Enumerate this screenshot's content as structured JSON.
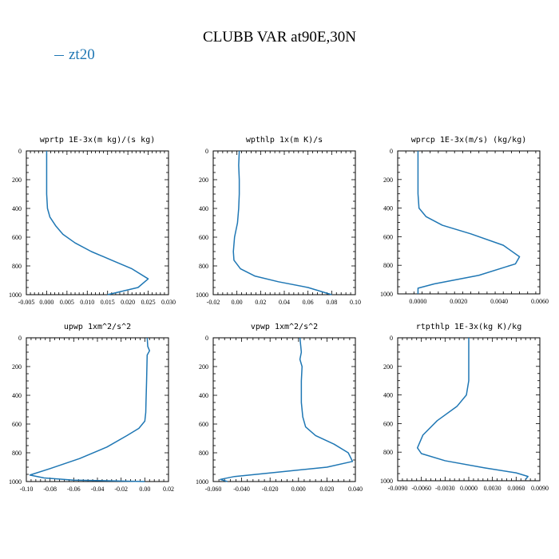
{
  "figure": {
    "title": "CLUBB VAR at90E,30N",
    "legend": [
      {
        "label": "zt20",
        "color": "#1f77b4"
      }
    ]
  },
  "chart_data": [
    {
      "type": "line",
      "title": "wprtp  1E-3x(m kg)/(s kg)",
      "xlim": [
        -0.005,
        0.03
      ],
      "xticks": [
        "-0.005",
        "0.000",
        "0.005",
        "0.010",
        "0.015",
        "0.020",
        "0.025",
        "0.030"
      ],
      "ylim": [
        1000,
        0
      ],
      "yticks": [
        "0",
        "200",
        "400",
        "600",
        "800",
        "1000"
      ],
      "series": [
        {
          "color": "#1f77b4",
          "x": [
            0.0,
            0.0,
            0.0,
            0.0,
            0.0002,
            0.0008,
            0.0022,
            0.004,
            0.007,
            0.011,
            0.016,
            0.021,
            0.025,
            0.0225,
            0.015
          ],
          "y": [
            0,
            100,
            200,
            300,
            400,
            460,
            520,
            580,
            640,
            700,
            760,
            820,
            890,
            950,
            1000
          ]
        }
      ]
    },
    {
      "type": "line",
      "title": "wpthlp  1x(m K)/s",
      "xlim": [
        -0.02,
        0.1
      ],
      "xticks": [
        "-0.02",
        "0.00",
        "0.02",
        "0.04",
        "0.06",
        "0.08",
        "0.10"
      ],
      "ylim": [
        1000,
        0
      ],
      "yticks": [
        "0",
        "200",
        "400",
        "600",
        "800",
        "1000"
      ],
      "series": [
        {
          "color": "#1f77b4",
          "x": [
            0.002,
            0.0015,
            0.002,
            0.002,
            0.0015,
            0.0005,
            -0.002,
            -0.003,
            -0.0025,
            0.003,
            0.015,
            0.035,
            0.06,
            0.08
          ],
          "y": [
            0,
            100,
            200,
            300,
            400,
            500,
            600,
            700,
            760,
            820,
            870,
            910,
            950,
            1000
          ]
        }
      ]
    },
    {
      "type": "line",
      "title": "wprcp  1E-3x(m/s) (kg/kg)",
      "xlim": [
        -0.001,
        0.006
      ],
      "xticks": [
        "0.0000",
        "0.0020",
        "0.0040",
        "0.0060"
      ],
      "ylim": [
        1000,
        0
      ],
      "yticks": [
        "0",
        "200",
        "400",
        "600",
        "800",
        "1000"
      ],
      "series": [
        {
          "color": "#1f77b4",
          "x": [
            0.0,
            0.0,
            0.0,
            0.0,
            5e-05,
            0.0004,
            0.0012,
            0.0026,
            0.0042,
            0.005,
            0.0048,
            0.003,
            0.0008,
            0.0,
            0.0
          ],
          "y": [
            0,
            100,
            200,
            300,
            400,
            460,
            520,
            580,
            660,
            740,
            790,
            870,
            930,
            960,
            1000
          ]
        }
      ]
    },
    {
      "type": "line",
      "title": "upwp  1xm^2/s^2",
      "xlim": [
        -0.1,
        0.02
      ],
      "xticks": [
        "-0.10",
        "-0.08",
        "-0.06",
        "-0.04",
        "-0.02",
        "0.00",
        "0.02"
      ],
      "ylim": [
        1000,
        0
      ],
      "yticks": [
        "0",
        "200",
        "400",
        "600",
        "800",
        "1000"
      ],
      "series": [
        {
          "color": "#1f77b4",
          "x": [
            0.002,
            0.0025,
            0.004,
            0.002,
            0.0015,
            0.001,
            0.0008,
            0.0,
            -0.005,
            -0.015,
            -0.032,
            -0.055,
            -0.08,
            -0.097,
            -0.085,
            -0.06,
            0.0
          ],
          "y": [
            0,
            60,
            90,
            120,
            300,
            450,
            520,
            580,
            630,
            680,
            760,
            840,
            910,
            955,
            975,
            990,
            1000
          ]
        }
      ]
    },
    {
      "type": "line",
      "title": "vpwp  1xm^2/s^2",
      "xlim": [
        -0.06,
        0.04
      ],
      "xticks": [
        "-0.060",
        "-0.040",
        "-0.020",
        "0.000",
        "0.020",
        "0.040"
      ],
      "ylim": [
        1000,
        0
      ],
      "yticks": [
        "0",
        "200",
        "400",
        "600",
        "800",
        "1000"
      ],
      "series": [
        {
          "color": "#1f77b4",
          "x": [
            0.001,
            0.002,
            0.001,
            0.0025,
            0.002,
            0.002,
            0.003,
            0.005,
            0.012,
            0.025,
            0.035,
            0.038,
            0.02,
            -0.02,
            -0.045,
            -0.055,
            -0.05
          ],
          "y": [
            0,
            100,
            150,
            200,
            300,
            450,
            550,
            620,
            680,
            740,
            800,
            860,
            900,
            940,
            965,
            985,
            1000
          ]
        }
      ]
    },
    {
      "type": "line",
      "title": "rtpthlp  1E-3x(kg K)/kg",
      "xlim": [
        -0.009,
        0.009
      ],
      "xticks": [
        "-0.0090",
        "-0.0060",
        "-0.0030",
        "0.0000",
        "0.0030",
        "0.0060",
        "0.0090"
      ],
      "ylim": [
        1000,
        0
      ],
      "yticks": [
        "0",
        "200",
        "400",
        "600",
        "800",
        "1000"
      ],
      "series": [
        {
          "color": "#1f77b4",
          "x": [
            0.0,
            0.0,
            0.0,
            0.0,
            -0.0003,
            -0.0015,
            -0.004,
            -0.0058,
            -0.0065,
            -0.006,
            -0.003,
            0.002,
            0.006,
            0.0075,
            0.0072
          ],
          "y": [
            0,
            100,
            200,
            300,
            400,
            480,
            580,
            680,
            770,
            810,
            860,
            910,
            945,
            970,
            990
          ]
        }
      ]
    }
  ]
}
